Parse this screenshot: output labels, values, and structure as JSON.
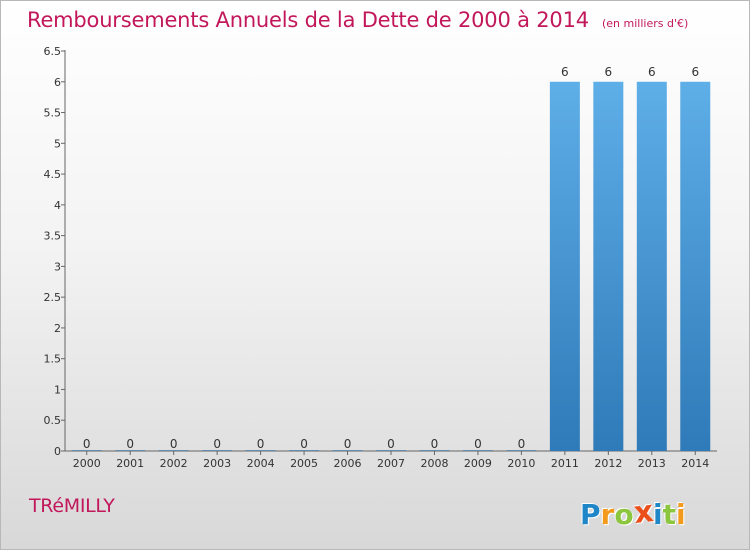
{
  "header": {
    "title": "Remboursements Annuels de la Dette de 2000 à 2014",
    "unit": "(en milliers d'€)"
  },
  "footer": {
    "commune": "TRéMILLY"
  },
  "brand": {
    "name": "Proxiti",
    "letters": [
      {
        "char": "P",
        "color": "#1f86c8"
      },
      {
        "char": "r",
        "color": "#f39a1d"
      },
      {
        "char": "o",
        "color": "#8cc63f"
      },
      {
        "char": "x",
        "color": "#e94e1b"
      },
      {
        "char": "i",
        "color": "#1f86c8"
      },
      {
        "char": "t",
        "color": "#8cc63f"
      },
      {
        "char": "i",
        "color": "#f39a1d"
      }
    ]
  },
  "colors": {
    "bar_top": "#5eaee8",
    "bar_bottom": "#2f7ab8",
    "axis": "#666666",
    "tick_text": "#333333",
    "label_text": "#333333"
  },
  "chart_data": {
    "type": "bar",
    "title": "Remboursements Annuels de la Dette de 2000 à 2014",
    "subtitle": "(en milliers d'€)",
    "xlabel": "",
    "ylabel": "",
    "categories": [
      "2000",
      "2001",
      "2002",
      "2003",
      "2004",
      "2005",
      "2006",
      "2007",
      "2008",
      "2009",
      "2010",
      "2011",
      "2012",
      "2013",
      "2014"
    ],
    "values": [
      0,
      0,
      0,
      0,
      0,
      0,
      0,
      0,
      0,
      0,
      0,
      6,
      6,
      6,
      6
    ],
    "data_labels": [
      "0",
      "0",
      "0",
      "0",
      "0",
      "0",
      "0",
      "0",
      "0",
      "0",
      "0",
      "6",
      "6",
      "6",
      "6"
    ],
    "ylim": [
      0,
      6.5
    ],
    "y_ticks": [
      0,
      0.5,
      1,
      1.5,
      2,
      2.5,
      3,
      3.5,
      4,
      4.5,
      5,
      5.5,
      6,
      6.5
    ],
    "y_tick_labels": [
      "0",
      "0.5",
      "1",
      "1.5",
      "2",
      "2.5",
      "3",
      "3.5",
      "4",
      "4.5",
      "5",
      "5.5",
      "6",
      "6.5"
    ],
    "grid": false,
    "legend": "none"
  }
}
